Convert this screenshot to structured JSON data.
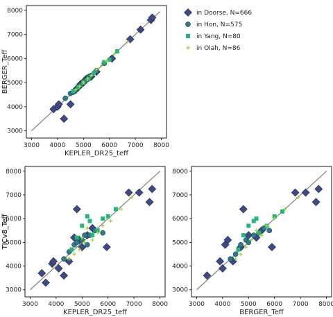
{
  "colors": {
    "Doorse": "#3b4a8c",
    "Hon": "#2a7d8e",
    "Yang": "#27b67a",
    "Olah": "#a3d93a",
    "edge": "#2b2b2b",
    "refline": "#808080"
  },
  "legend": {
    "placement": "top-right",
    "entries": [
      {
        "name": "in Doorse, N=666",
        "marker": "diamond",
        "color": "#3b4a8c"
      },
      {
        "name": "in Hon, N=575",
        "marker": "circle",
        "color": "#2a7d8e"
      },
      {
        "name": "in Yang, N=80",
        "marker": "square",
        "color": "#27b67a"
      },
      {
        "name": "in Olah, N=86",
        "marker": "plus",
        "color": "#a3d93a"
      }
    ]
  },
  "chart_data": [
    {
      "type": "scatter",
      "xlabel": "KEPLER_DR25_teff",
      "ylabel": "BERGER_Teff",
      "xlim": [
        2800,
        8200
      ],
      "ylim": [
        2700,
        8200
      ],
      "xticks": [
        3000,
        4000,
        5000,
        6000,
        7000,
        8000
      ],
      "yticks": [
        3000,
        4000,
        5000,
        6000,
        7000,
        8000
      ],
      "reference_line": [
        [
          3000,
          3000
        ],
        [
          7950,
          7950
        ]
      ],
      "series": [
        {
          "name": "in Doorse, N=666",
          "marker": "diamond",
          "points": [
            [
              3850,
              3900
            ],
            [
              4000,
              4000
            ],
            [
              4050,
              4100
            ],
            [
              4250,
              3500
            ],
            [
              4500,
              4100
            ],
            [
              4700,
              4700
            ],
            [
              4800,
              4800
            ],
            [
              4900,
              4950
            ],
            [
              5000,
              5000
            ],
            [
              5100,
              5150
            ],
            [
              5200,
              5200
            ],
            [
              5300,
              5250
            ],
            [
              5500,
              5450
            ],
            [
              6100,
              6000
            ],
            [
              6800,
              6800
            ],
            [
              7200,
              7200
            ],
            [
              7600,
              7600
            ],
            [
              7650,
              7700
            ]
          ]
        },
        {
          "name": "in Hon, N=575",
          "marker": "circle",
          "points": [
            [
              4300,
              4350
            ],
            [
              4500,
              4550
            ],
            [
              4600,
              4600
            ],
            [
              4800,
              4850
            ],
            [
              4900,
              4900
            ],
            [
              5000,
              5050
            ],
            [
              5100,
              5100
            ],
            [
              5200,
              5250
            ],
            [
              5300,
              5300
            ],
            [
              5500,
              5500
            ],
            [
              5800,
              5800
            ]
          ]
        },
        {
          "name": "in Yang, N=80",
          "marker": "square",
          "points": [
            [
              4600,
              4650
            ],
            [
              4800,
              4800
            ],
            [
              5000,
              5000
            ],
            [
              5200,
              5150
            ],
            [
              5400,
              5400
            ],
            [
              5800,
              5850
            ],
            [
              6000,
              5950
            ],
            [
              6300,
              6300
            ]
          ]
        },
        {
          "name": "in Olah, N=86",
          "marker": "plus",
          "points": [
            [
              4700,
              4700
            ],
            [
              4850,
              4850
            ],
            [
              5000,
              5000
            ],
            [
              5150,
              5150
            ],
            [
              5300,
              5300
            ],
            [
              5500,
              5550
            ],
            [
              5700,
              5700
            ],
            [
              5900,
              5900
            ],
            [
              6200,
              6200
            ],
            [
              6700,
              6700
            ]
          ]
        }
      ]
    },
    {
      "type": "scatter",
      "xlabel": "KEPLER_DR25_teff",
      "ylabel": "TICv8_Teff",
      "xlim": [
        2800,
        8200
      ],
      "ylim": [
        2700,
        8200
      ],
      "xticks": [
        3000,
        4000,
        5000,
        6000,
        7000,
        8000
      ],
      "yticks": [
        3000,
        4000,
        5000,
        6000,
        7000,
        8000
      ],
      "reference_line": [
        [
          3000,
          3000
        ],
        [
          8000,
          8000
        ]
      ],
      "series": [
        {
          "name": "in Doorse, N=666",
          "marker": "diamond",
          "points": [
            [
              3450,
              3700
            ],
            [
              3600,
              3300
            ],
            [
              3850,
              4100
            ],
            [
              3900,
              4200
            ],
            [
              4100,
              3900
            ],
            [
              4300,
              3600
            ],
            [
              4500,
              4200
            ],
            [
              4700,
              5200
            ],
            [
              4800,
              6400
            ],
            [
              4900,
              5100
            ],
            [
              5000,
              4800
            ],
            [
              5200,
              5300
            ],
            [
              5400,
              5600
            ],
            [
              5950,
              4800
            ],
            [
              6800,
              7100
            ],
            [
              7200,
              7100
            ],
            [
              7600,
              6700
            ],
            [
              7700,
              7250
            ]
          ]
        },
        {
          "name": "in Hon, N=575",
          "marker": "circle",
          "points": [
            [
              4300,
              4300
            ],
            [
              4500,
              4600
            ],
            [
              4700,
              4900
            ],
            [
              4800,
              5000
            ],
            [
              5000,
              5100
            ],
            [
              5100,
              5300
            ],
            [
              5200,
              4900
            ],
            [
              5300,
              5300
            ],
            [
              5500,
              5500
            ],
            [
              5800,
              5400
            ]
          ]
        },
        {
          "name": "in Yang, N=80",
          "marker": "square",
          "points": [
            [
              4600,
              4700
            ],
            [
              4800,
              5200
            ],
            [
              5000,
              5700
            ],
            [
              5200,
              6100
            ],
            [
              5300,
              5900
            ],
            [
              5400,
              5300
            ],
            [
              5600,
              5500
            ],
            [
              5800,
              6000
            ],
            [
              6000,
              6100
            ],
            [
              6300,
              6400
            ]
          ]
        },
        {
          "name": "in Olah, N=86",
          "marker": "plus",
          "points": [
            [
              4500,
              4300
            ],
            [
              4700,
              4500
            ],
            [
              4900,
              4700
            ],
            [
              5000,
              5200
            ],
            [
              5100,
              5000
            ],
            [
              5200,
              5600
            ],
            [
              5400,
              5100
            ],
            [
              5600,
              5400
            ],
            [
              5800,
              5700
            ],
            [
              6100,
              5900
            ],
            [
              6500,
              6400
            ],
            [
              6900,
              6900
            ]
          ]
        }
      ]
    },
    {
      "type": "scatter",
      "xlabel": "BERGER_Teff",
      "ylabel": "TICv8_Teff",
      "xlim": [
        2800,
        8200
      ],
      "ylim": [
        2700,
        8200
      ],
      "xticks": [
        3000,
        4000,
        5000,
        6000,
        7000,
        8000
      ],
      "yticks": [
        3000,
        4000,
        5000,
        6000,
        7000,
        8000
      ],
      "reference_line": [
        [
          3000,
          3000
        ],
        [
          8000,
          8000
        ]
      ],
      "series": [
        {
          "name": "in Doorse, N=666",
          "marker": "diamond",
          "points": [
            [
              3400,
              3600
            ],
            [
              3900,
              4200
            ],
            [
              4000,
              3900
            ],
            [
              4100,
              4900
            ],
            [
              4200,
              5100
            ],
            [
              4400,
              4200
            ],
            [
              4700,
              4800
            ],
            [
              4800,
              6400
            ],
            [
              5000,
              5300
            ],
            [
              5300,
              5200
            ],
            [
              5500,
              5500
            ],
            [
              5900,
              4800
            ],
            [
              6800,
              7100
            ],
            [
              7200,
              7100
            ],
            [
              7600,
              6700
            ],
            [
              7700,
              7250
            ]
          ]
        },
        {
          "name": "in Hon, N=575",
          "marker": "circle",
          "points": [
            [
              4300,
              4300
            ],
            [
              4500,
              4500
            ],
            [
              4700,
              4900
            ],
            [
              4900,
              5100
            ],
            [
              5000,
              5000
            ],
            [
              5200,
              5300
            ],
            [
              5400,
              5400
            ],
            [
              5600,
              5600
            ],
            [
              5800,
              5500
            ]
          ]
        },
        {
          "name": "in Yang, N=80",
          "marker": "square",
          "points": [
            [
              4600,
              4700
            ],
            [
              4800,
              5300
            ],
            [
              5000,
              5700
            ],
            [
              5200,
              5900
            ],
            [
              5300,
              6000
            ],
            [
              5400,
              5400
            ],
            [
              5700,
              5700
            ],
            [
              6000,
              6100
            ],
            [
              6300,
              6300
            ]
          ]
        },
        {
          "name": "in Olah, N=86",
          "marker": "plus",
          "points": [
            [
              4500,
              4300
            ],
            [
              4700,
              4500
            ],
            [
              4900,
              4800
            ],
            [
              5100,
              5100
            ],
            [
              5300,
              5500
            ],
            [
              5500,
              5300
            ],
            [
              5700,
              5700
            ],
            [
              6000,
              6000
            ],
            [
              6400,
              6400
            ],
            [
              6900,
              6900
            ]
          ]
        }
      ]
    }
  ]
}
